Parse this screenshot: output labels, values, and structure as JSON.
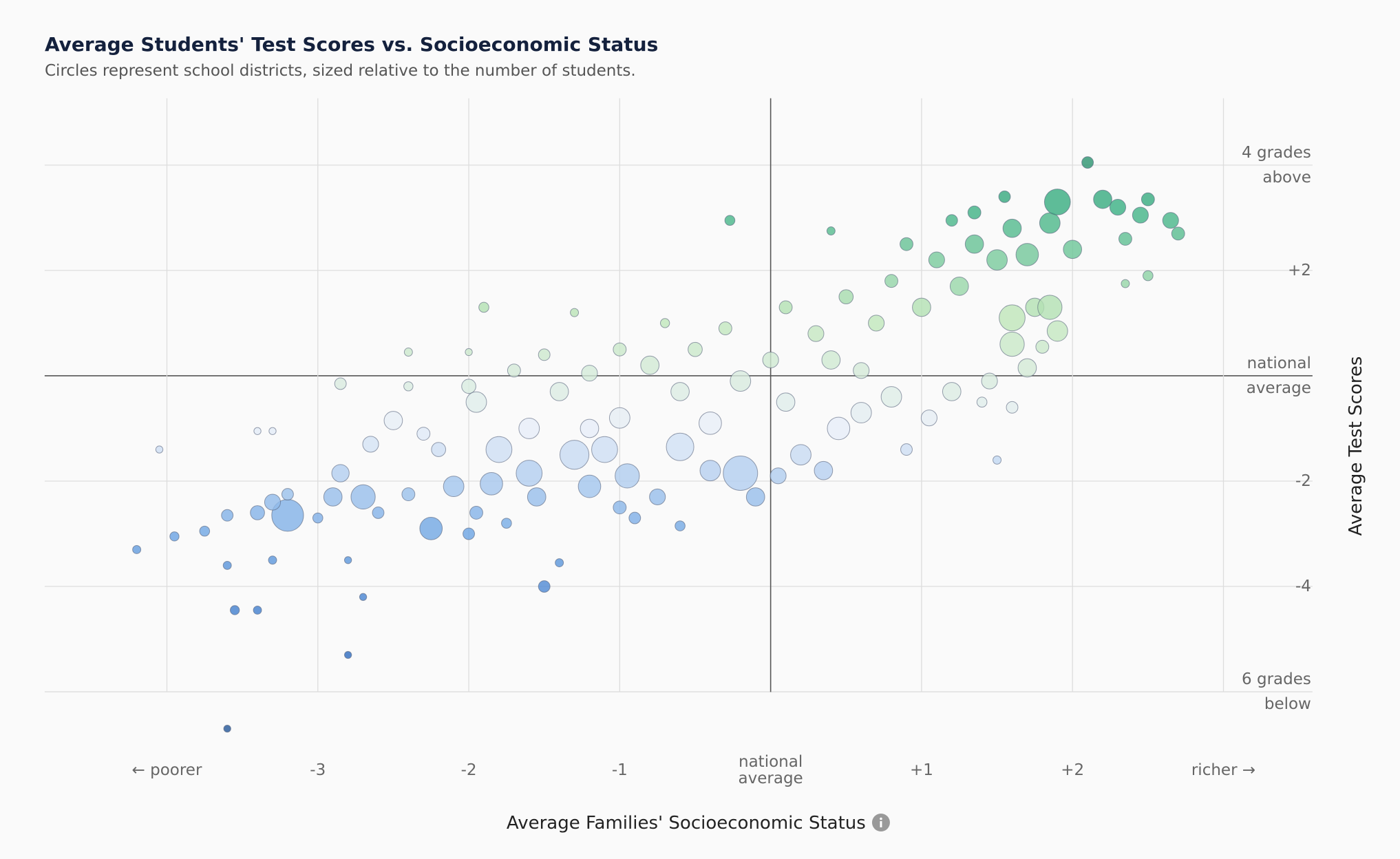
{
  "chart_data": {
    "type": "scatter",
    "title": "Average Students' Test Scores vs. Socioeconomic Status",
    "subtitle": "Circles represent school districts, sized relative to the number of students.",
    "x_label": "Average Families' Socioeconomic Status",
    "y_label": "Average Test Scores",
    "xlim": [
      -4.81,
      3.59
    ],
    "ylim": [
      -7.19,
      5.27
    ],
    "xticks": [
      {
        "value": -4,
        "label": "← poorer"
      },
      {
        "value": -3,
        "label": "-3"
      },
      {
        "value": -2,
        "label": "-2"
      },
      {
        "value": -1,
        "label": "-1"
      },
      {
        "value": 0,
        "label": "national\naverage"
      },
      {
        "value": 1,
        "label": "+1"
      },
      {
        "value": 2,
        "label": "+2"
      },
      {
        "value": 3,
        "label": "richer →"
      }
    ],
    "yticks": [
      {
        "value": 4,
        "label": "4 grades\nabove"
      },
      {
        "value": 2,
        "label": "+2"
      },
      {
        "value": 0,
        "label": "national\naverage"
      },
      {
        "value": -2,
        "label": "-2"
      },
      {
        "value": -4,
        "label": "-4"
      },
      {
        "value": -6,
        "label": "6 grades\nbelow"
      }
    ],
    "grid": true,
    "colormap": [
      "#1f4e8c",
      "#2f6ec4",
      "#6aa3e3",
      "#e9eff9",
      "#bfe6b8",
      "#39b083",
      "#1a6a52"
    ],
    "x": [
      -4.2,
      -3.95,
      -3.6,
      -3.55,
      -3.4,
      -3.3,
      -3.6,
      -3.75,
      -3.4,
      -3.2,
      -3.3,
      -3.2,
      -3.0,
      -2.9,
      -2.85,
      -2.7,
      -2.6,
      -2.8,
      -2.7,
      -2.8,
      -3.6,
      -4.05,
      -3.4,
      -3.3,
      -2.65,
      -2.5,
      -2.3,
      -2.4,
      -2.25,
      -2.1,
      -2.0,
      -1.95,
      -1.85,
      -1.8,
      -1.75,
      -1.6,
      -1.55,
      -1.5,
      -1.4,
      -1.3,
      -1.2,
      -1.1,
      -1.0,
      -0.95,
      -0.9,
      -0.75,
      -0.6,
      -0.6,
      -0.4,
      -0.2,
      -0.1,
      0.05,
      0.2,
      0.35,
      0.45,
      0.6,
      0.8,
      0.9,
      1.05,
      1.2,
      1.4,
      1.5,
      1.6,
      1.45,
      1.7,
      1.6,
      1.8,
      1.9,
      1.75,
      1.85,
      1.6,
      -1.9,
      -1.3,
      -2.4,
      -2.0,
      -2.85,
      -2.4,
      -2.0,
      -1.95,
      -1.7,
      -1.5,
      -1.4,
      -1.2,
      -1.0,
      -0.8,
      -0.6,
      -0.5,
      -0.3,
      -0.2,
      0.0,
      0.1,
      0.3,
      0.4,
      0.5,
      0.7,
      0.8,
      1.0,
      1.1,
      1.25,
      1.35,
      1.5,
      1.6,
      1.7,
      1.85,
      1.9,
      2.0,
      2.1,
      2.2,
      2.3,
      2.35,
      2.45,
      2.5,
      2.65,
      2.7,
      2.5,
      2.35,
      -0.27,
      0.4,
      0.9,
      1.2,
      1.35,
      1.55,
      -0.7,
      -1.0,
      -0.4,
      0.1,
      0.6,
      -1.6,
      -2.2,
      -1.2
    ],
    "y": [
      -3.3,
      -3.05,
      -3.6,
      -4.45,
      -4.45,
      -3.5,
      -2.65,
      -2.95,
      -2.6,
      -2.65,
      -2.4,
      -2.25,
      -2.7,
      -2.3,
      -1.85,
      -2.3,
      -2.6,
      -3.5,
      -4.2,
      -5.3,
      -6.7,
      -1.4,
      -1.05,
      -1.05,
      -1.3,
      -0.85,
      -1.1,
      -2.25,
      -2.9,
      -2.1,
      -3.0,
      -2.6,
      -2.05,
      -1.4,
      -2.8,
      -1.85,
      -2.3,
      -4.0,
      -3.55,
      -1.5,
      -2.1,
      -1.4,
      -2.5,
      -1.9,
      -2.7,
      -2.3,
      -1.35,
      -2.85,
      -1.8,
      -1.85,
      -2.3,
      -1.9,
      -1.5,
      -1.8,
      -1.0,
      -0.7,
      -0.4,
      -1.4,
      -0.8,
      -0.3,
      -0.5,
      -1.6,
      -0.6,
      -0.1,
      0.15,
      0.6,
      0.55,
      0.85,
      1.3,
      1.3,
      1.1,
      1.3,
      1.2,
      0.45,
      0.45,
      -0.15,
      -0.2,
      -0.2,
      -0.5,
      0.1,
      0.4,
      -0.3,
      0.05,
      0.5,
      0.2,
      -0.3,
      0.5,
      0.9,
      -0.1,
      0.3,
      1.3,
      0.8,
      0.3,
      1.5,
      1.0,
      1.8,
      1.3,
      2.2,
      1.7,
      2.5,
      2.2,
      2.8,
      2.3,
      2.9,
      3.3,
      2.4,
      4.05,
      3.35,
      3.2,
      2.6,
      3.05,
      3.35,
      2.95,
      2.7,
      1.9,
      1.75,
      2.95,
      2.75,
      2.5,
      2.95,
      3.1,
      3.4,
      1.0,
      -0.8,
      -0.9,
      -0.5,
      0.1,
      -1.0,
      -1.4,
      -1.0
    ],
    "size": [
      4,
      5,
      4,
      5,
      4,
      4,
      8,
      6,
      12,
      60,
      15,
      8,
      6,
      20,
      18,
      35,
      8,
      3,
      3,
      3,
      3,
      3,
      3,
      3,
      15,
      20,
      10,
      10,
      30,
      25,
      8,
      10,
      30,
      40,
      6,
      40,
      20,
      8,
      4,
      50,
      30,
      40,
      10,
      35,
      8,
      15,
      45,
      6,
      25,
      70,
      20,
      15,
      25,
      20,
      30,
      25,
      25,
      8,
      15,
      20,
      6,
      4,
      8,
      15,
      20,
      35,
      10,
      25,
      20,
      35,
      40,
      6,
      4,
      4,
      3,
      8,
      5,
      12,
      25,
      10,
      8,
      20,
      15,
      10,
      20,
      20,
      12,
      10,
      25,
      15,
      10,
      15,
      20,
      12,
      15,
      10,
      20,
      15,
      20,
      20,
      25,
      20,
      30,
      25,
      40,
      20,
      8,
      20,
      15,
      10,
      15,
      10,
      15,
      10,
      6,
      4,
      6,
      4,
      10,
      8,
      10,
      8,
      5,
      25,
      30,
      20,
      15,
      25,
      12,
      20
    ]
  }
}
